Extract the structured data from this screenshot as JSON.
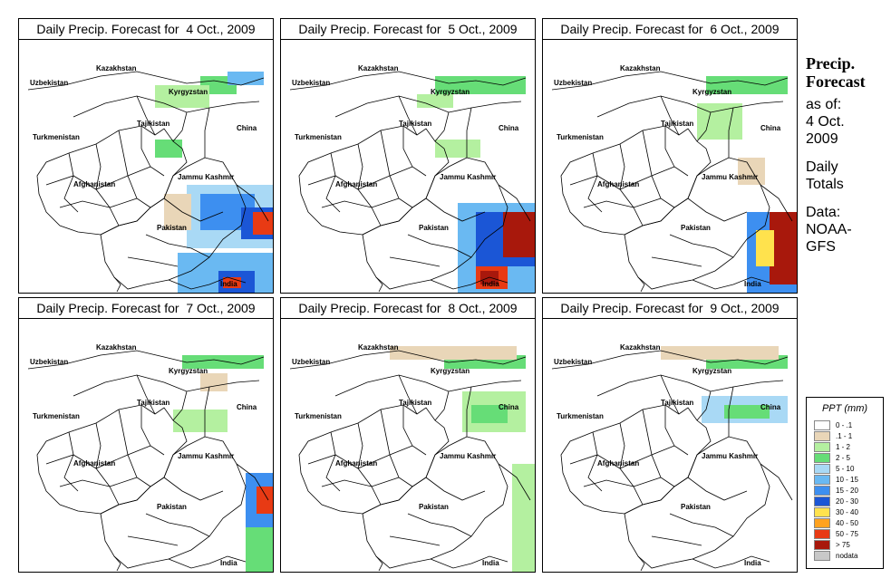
{
  "panels": [
    {
      "title": "Daily Precip. Forecast for  4 Oct., 2009"
    },
    {
      "title": "Daily Precip. Forecast for  5 Oct., 2009"
    },
    {
      "title": "Daily Precip. Forecast for  6 Oct., 2009"
    },
    {
      "title": "Daily Precip. Forecast for  7 Oct., 2009"
    },
    {
      "title": "Daily Precip. Forecast for  8 Oct., 2009"
    },
    {
      "title": "Daily Precip. Forecast for  9 Oct., 2009"
    }
  ],
  "map_labels": {
    "kazakhstan": "Kazakhstan",
    "uzbekistan": "Uzbekistan",
    "kyrgyzstan": "Kyrgyzstan",
    "tajikistan": "Tajikistan",
    "china": "China",
    "turkmenistan": "Turkmenistan",
    "jammu_kashmir": "Jammu Kashmir",
    "afghanistan": "Afghanistan",
    "pakistan": "Pakistan",
    "india": "India"
  },
  "side_info": {
    "title_line1": "Precip.",
    "title_line2": "Forecast",
    "asof_line1": "as of:",
    "asof_line2": "4 Oct.",
    "asof_line3": "2009",
    "totals_line1": "Daily",
    "totals_line2": "Totals",
    "data_line1": "Data:",
    "data_line2": "NOAA-",
    "data_line3": "GFS"
  },
  "legend": {
    "title": "PPT (mm)",
    "items": [
      {
        "label": "0 - .1",
        "color": "#ffffff"
      },
      {
        "label": ".1 - 1",
        "color": "#e9d6b8"
      },
      {
        "label": "1 - 2",
        "color": "#b4f0a0"
      },
      {
        "label": "2 - 5",
        "color": "#66dd77"
      },
      {
        "label": "5 - 10",
        "color": "#a9d9f5"
      },
      {
        "label": "10 - 15",
        "color": "#6ab9f2"
      },
      {
        "label": "15 - 20",
        "color": "#3d8ff0"
      },
      {
        "label": "20 - 30",
        "color": "#1b56d6"
      },
      {
        "label": "30 - 40",
        "color": "#ffe24d"
      },
      {
        "label": "40 - 50",
        "color": "#ffa21f"
      },
      {
        "label": "50 - 75",
        "color": "#e83a14"
      },
      {
        "label": "> 75",
        "color": "#a8180c"
      },
      {
        "label": "nodata",
        "color": "#c8c8c8"
      }
    ]
  }
}
